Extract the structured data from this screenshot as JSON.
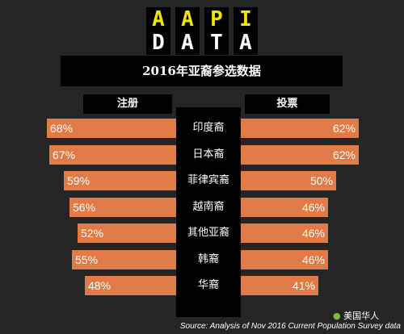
{
  "logo": {
    "row1": [
      "A",
      "A",
      "P",
      "I"
    ],
    "row2": [
      "D",
      "A",
      "T",
      "A"
    ]
  },
  "title": "2016年亚裔参选数据",
  "headers": {
    "left": "注册",
    "right": "投票"
  },
  "colors": {
    "bar": "#e07a46",
    "background": "#252525",
    "logo_yellow": "#f2e500",
    "logo_white": "#ffffff"
  },
  "chart_data": {
    "type": "bar",
    "title": "2016年亚裔参选数据",
    "categories": [
      "印度裔",
      "日本裔",
      "菲律宾裔",
      "越南裔",
      "其他亚裔",
      "韩裔",
      "华裔"
    ],
    "series": [
      {
        "name": "注册",
        "values": [
          68,
          67,
          59,
          56,
          52,
          55,
          48
        ],
        "labels": [
          "68%",
          "67%",
          "59%",
          "56%",
          "52%",
          "55%",
          "48%"
        ]
      },
      {
        "name": "投票",
        "values": [
          62,
          62,
          50,
          46,
          46,
          46,
          41
        ],
        "labels": [
          "62%",
          "62%",
          "50%",
          "46%",
          "46%",
          "46%",
          "41%"
        ]
      }
    ]
  },
  "brand": "美国华人",
  "source": "Source: Analysis of Nov 2016 Current Population Survey data"
}
